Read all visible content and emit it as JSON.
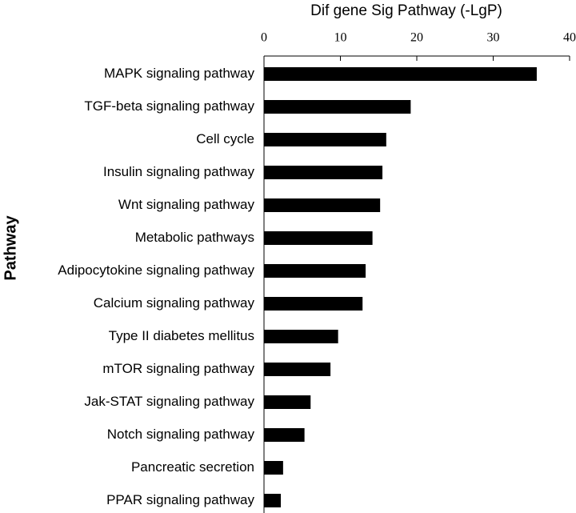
{
  "chart_data": {
    "type": "bar",
    "orientation": "horizontal",
    "title": "Dif gene Sig Pathway (-LgP)",
    "y_label": "Pathway",
    "categories": [
      "MAPK signaling pathway",
      "TGF-beta signaling pathway",
      "Cell cycle",
      "Insulin signaling pathway",
      "Wnt signaling pathway",
      "Metabolic pathways",
      "Adipocytokine signaling pathway",
      "Calcium signaling pathway",
      "Type II diabetes mellitus",
      "mTOR signaling pathway",
      "Jak-STAT signaling pathway",
      "Notch signaling pathway",
      "Pancreatic secretion",
      "PPAR signaling pathway"
    ],
    "values": [
      35.7,
      19.2,
      16.0,
      15.5,
      15.2,
      14.2,
      13.3,
      12.9,
      9.7,
      8.7,
      6.1,
      5.3,
      2.5,
      2.2
    ],
    "color": "#000000",
    "xlim": [
      0,
      40
    ],
    "xticks": [
      0,
      10,
      20,
      30,
      40
    ],
    "grid": false
  }
}
